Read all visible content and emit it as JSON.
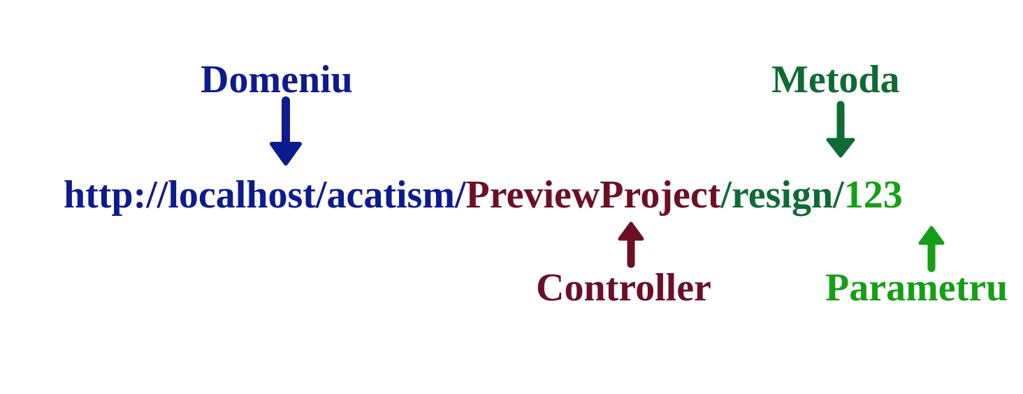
{
  "colors": {
    "domain": "#0d1b8e",
    "controller": "#6b0f26",
    "method": "#0f6a34",
    "parameter": "#169e16"
  },
  "labels": {
    "domain": "Domeniu",
    "method": "Metoda",
    "controller": "Controller",
    "parameter": "Parametru"
  },
  "url": {
    "domain_part": "http://localhost/acatism/",
    "controller_part": "PreviewProject",
    "sep1": "/",
    "method_part": "resign/",
    "parameter_part": "123"
  },
  "arrows": [
    {
      "name": "domain-arrow",
      "direction": "down"
    },
    {
      "name": "method-arrow",
      "direction": "down"
    },
    {
      "name": "controller-arrow",
      "direction": "up"
    },
    {
      "name": "parameter-arrow",
      "direction": "up"
    }
  ]
}
